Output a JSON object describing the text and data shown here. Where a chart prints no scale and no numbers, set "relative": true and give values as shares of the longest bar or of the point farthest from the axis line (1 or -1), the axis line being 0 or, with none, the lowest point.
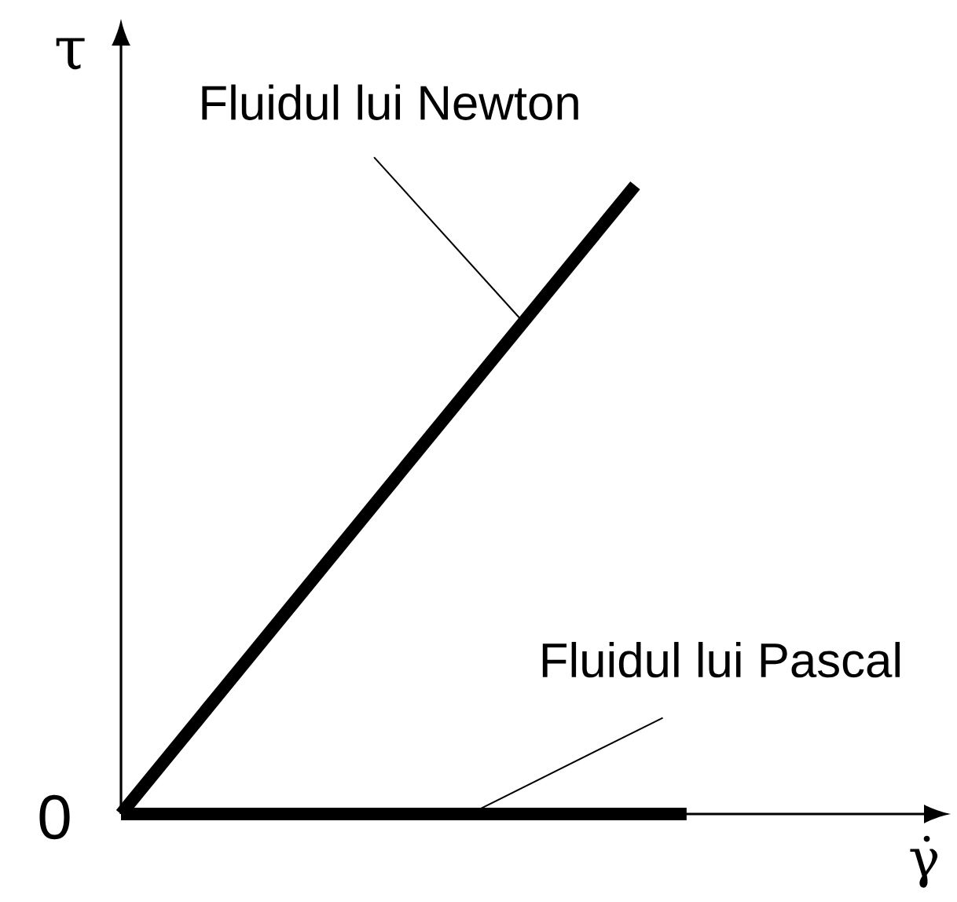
{
  "chart_data": {
    "type": "line",
    "relative": true,
    "xlabel": "γ̇",
    "ylabel": "τ",
    "categories": [
      null,
      null,
      null,
      null,
      null,
      null,
      null,
      null,
      null,
      null,
      null,
      null
    ],
    "series": [
      {
        "values": [
          0,
          0.1,
          0.2,
          0.3,
          0.4,
          0.5,
          0.6,
          0.7,
          0.8,
          0.9,
          1,
          null
        ],
        "color": "#000000"
      },
      {
        "values": [
          0,
          0,
          0,
          0,
          0,
          0,
          0,
          0,
          0,
          0,
          0,
          0
        ],
        "color": "#000000"
      }
    ],
    "annotations": [
      "Fluidul lui Newton",
      "Fluidul lui Pascal",
      "0"
    ],
    "marker": "none",
    "line_style": "solid"
  }
}
